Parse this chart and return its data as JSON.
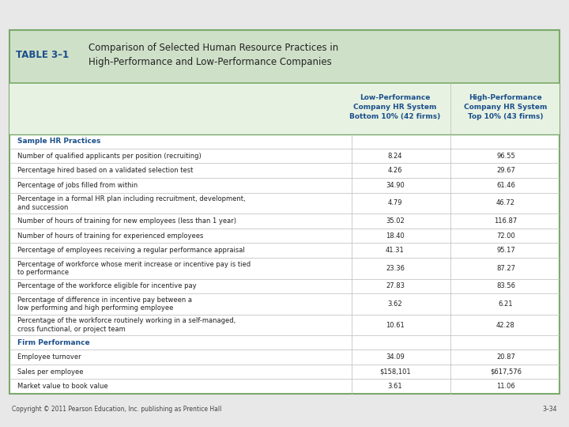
{
  "title_label": "TABLE 3–1",
  "title_text": "Comparison of Selected Human Resource Practices in\nHigh-Performance and Low-Performance Companies",
  "col1_header": "Low-Performance\nCompany HR System\nBottom 10% (42 firms)",
  "col2_header": "High-Performance\nCompany HR System\nTop 10% (43 firms)",
  "section1_label": "Sample HR Practices",
  "section2_label": "Firm Performance",
  "rows": [
    {
      "label": "Number of qualified applicants per position (recruiting)",
      "italic_word": "recruiting",
      "col1": "8.24",
      "col2": "96.55",
      "multiline": false
    },
    {
      "label": "Percentage hired based on a validated selection test",
      "italic_word": "selection",
      "col1": "4.26",
      "col2": "29.67",
      "multiline": false
    },
    {
      "label": "Percentage of jobs filled from within",
      "italic_word": "",
      "col1": "34.90",
      "col2": "61.46",
      "multiline": false
    },
    {
      "label": "Percentage in a formal HR plan including recruitment, development,\nand succession",
      "italic_word": "",
      "col1": "4.79",
      "col2": "46.72",
      "multiline": true
    },
    {
      "label": "Number of hours of training for new employees (less than 1 year)",
      "italic_word": "training",
      "col1": "35.02",
      "col2": "116.87",
      "multiline": false
    },
    {
      "label": "Number of hours of training for experienced employees",
      "italic_word": "training",
      "col1": "18.40",
      "col2": "72.00",
      "multiline": false
    },
    {
      "label": "Percentage of employees receiving a regular performance appraisal",
      "italic_word": "",
      "col1": "41.31",
      "col2": "95.17",
      "multiline": false
    },
    {
      "label": "Percentage of workforce whose merit increase or incentive pay is tied\nto performance",
      "italic_word": "",
      "col1": "23.36",
      "col2": "87.27",
      "multiline": true
    },
    {
      "label": "Percentage of the workforce eligible for incentive pay",
      "italic_word": "",
      "col1": "27.83",
      "col2": "83.56",
      "multiline": false
    },
    {
      "label": "Percentage of difference in incentive pay between a\nlow performing and high performing employee",
      "italic_word": "",
      "col1": "3.62",
      "col2": "6.21",
      "multiline": true
    },
    {
      "label": "Percentage of the workforce routinely working in a self-managed,\ncross functional, or project team",
      "italic_word": "",
      "col1": "10.61",
      "col2": "42.28",
      "multiline": true
    },
    {
      "label": "Employee turnover",
      "italic_word": "",
      "col1": "34.09",
      "col2": "20.87",
      "multiline": false,
      "section": "firm"
    },
    {
      "label": "Sales per employee",
      "italic_word": "",
      "col1": "$158,101",
      "col2": "$617,576",
      "multiline": false,
      "section": "firm"
    },
    {
      "label": "Market value to book value",
      "italic_word": "",
      "col1": "3.61",
      "col2": "11.06",
      "multiline": false,
      "section": "firm"
    }
  ],
  "header_bg": "#cfe0c8",
  "body_bg": "#ffffff",
  "col_header_bg": "#e8f2e3",
  "border_color": "#7aaa6a",
  "title_label_color": "#1a4f8a",
  "title_text_color": "#222222",
  "section_label_color": "#1a4f8a",
  "col_header_color": "#1a4f8a",
  "text_color": "#222222",
  "line_color": "#bbbbbb",
  "copyright_text": "Copyright © 2011 Pearson Education, Inc. publishing as Prentice Hall",
  "page_number": "3–34",
  "outer_bg": "#e8e8e8"
}
